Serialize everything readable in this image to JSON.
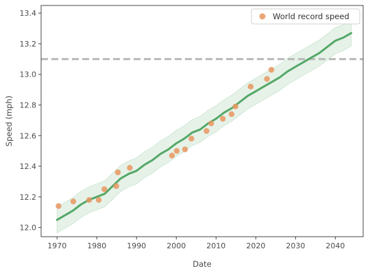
{
  "chart_data": {
    "type": "scatter",
    "xlabel": "Date",
    "ylabel": "Speed (mph)",
    "xlim": [
      1966,
      2047
    ],
    "ylim": [
      11.94,
      13.45
    ],
    "xticks": [
      1970,
      1980,
      1990,
      2000,
      2010,
      2020,
      2030,
      2040
    ],
    "yticks": [
      12.0,
      12.2,
      12.4,
      12.6,
      12.8,
      13.0,
      13.2,
      13.4
    ],
    "grid": false,
    "legend_position": "top-right",
    "series": [
      {
        "name": "World record speed",
        "kind": "scatter",
        "color": "#e8975f",
        "x": [
          1970.4,
          1974.1,
          1978.1,
          1980.5,
          1981.9,
          1984.9,
          1985.3,
          1988.3,
          1998.9,
          2000.1,
          2002.2,
          2003.8,
          2007.6,
          2008.8,
          2011.7,
          2013.9,
          2014.9,
          2018.7,
          2022.8,
          2023.9
        ],
        "y": [
          12.14,
          12.17,
          12.18,
          12.18,
          12.25,
          12.27,
          12.36,
          12.39,
          12.47,
          12.5,
          12.51,
          12.58,
          12.63,
          12.68,
          12.71,
          12.74,
          12.79,
          12.92,
          12.97,
          13.03
        ]
      },
      {
        "kind": "line",
        "color": "#55a868",
        "x": [
          1970,
          1972,
          1974,
          1976,
          1978,
          1980,
          1982,
          1984,
          1986,
          1988,
          1990,
          1992,
          1994,
          1996,
          1998,
          2000,
          2002,
          2004,
          2006,
          2008,
          2010,
          2012,
          2014,
          2016,
          2018,
          2020,
          2022,
          2024,
          2026,
          2028,
          2030,
          2032,
          2034,
          2036,
          2038,
          2040,
          2042,
          2044
        ],
        "y": [
          12.05,
          12.08,
          12.11,
          12.15,
          12.18,
          12.2,
          12.22,
          12.27,
          12.32,
          12.35,
          12.37,
          12.41,
          12.44,
          12.48,
          12.51,
          12.55,
          12.58,
          12.62,
          12.64,
          12.68,
          12.71,
          12.75,
          12.78,
          12.82,
          12.86,
          12.89,
          12.92,
          12.95,
          12.98,
          13.02,
          13.05,
          13.08,
          13.11,
          13.14,
          13.18,
          13.22,
          13.24,
          13.27
        ],
        "band_halfwidth": 0.085,
        "band_color": "#55a868"
      },
      {
        "kind": "hline",
        "color": "#b9b9b9",
        "y": 13.1
      }
    ]
  }
}
